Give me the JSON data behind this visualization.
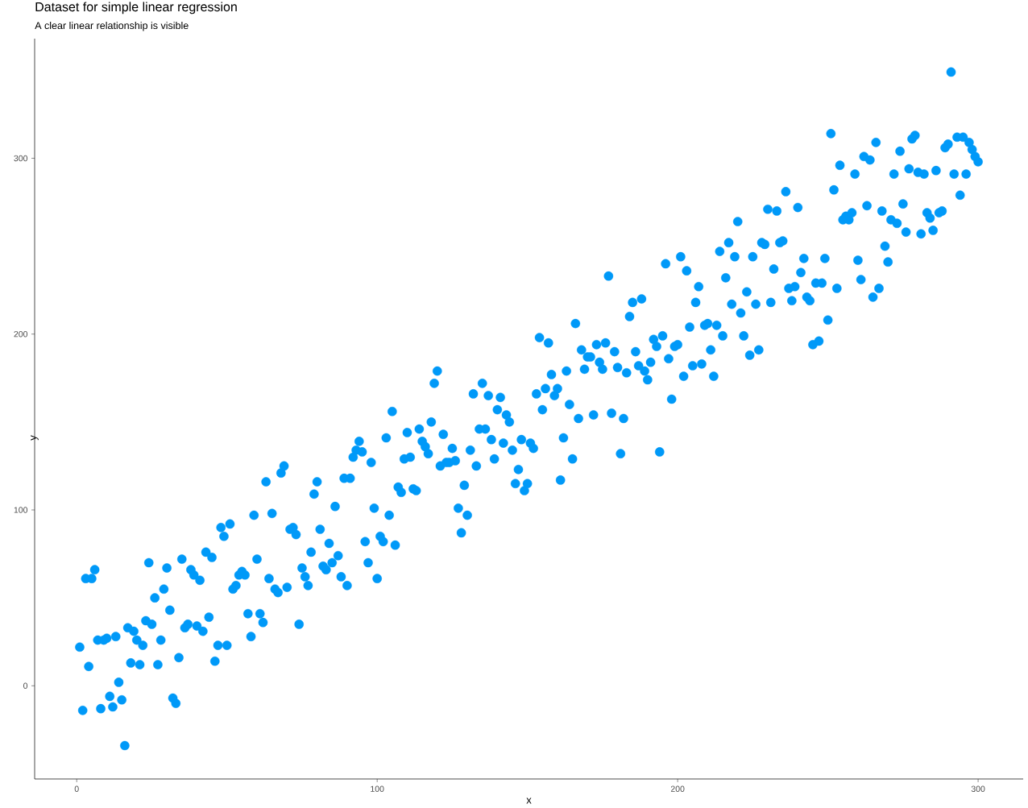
{
  "chart_data": {
    "type": "scatter",
    "title": "Dataset for simple linear regression",
    "subtitle": "A clear linear relationship is visible",
    "xlabel": "x",
    "ylabel": "y",
    "x": [
      1,
      2,
      3,
      4,
      5,
      6,
      7,
      8,
      9,
      10,
      11,
      12,
      13,
      14,
      15,
      16,
      17,
      18,
      19,
      20,
      21,
      22,
      23,
      24,
      25,
      26,
      27,
      28,
      29,
      30,
      31,
      32,
      33,
      34,
      35,
      36,
      37,
      38,
      39,
      40,
      41,
      42,
      43,
      44,
      45,
      46,
      47,
      48,
      49,
      50,
      51,
      52,
      53,
      54,
      55,
      56,
      57,
      58,
      59,
      60,
      61,
      62,
      63,
      64,
      65,
      66,
      67,
      68,
      69,
      70,
      71,
      72,
      73,
      74,
      75,
      76,
      77,
      78,
      79,
      80,
      81,
      82,
      83,
      84,
      85,
      86,
      87,
      88,
      89,
      90,
      91,
      92,
      93,
      94,
      95,
      96,
      97,
      98,
      99,
      100,
      101,
      102,
      103,
      104,
      105,
      106,
      107,
      108,
      109,
      110,
      111,
      112,
      113,
      114,
      115,
      116,
      117,
      118,
      119,
      120,
      121,
      122,
      123,
      124,
      125,
      126,
      127,
      128,
      129,
      130,
      131,
      132,
      133,
      134,
      135,
      136,
      137,
      138,
      139,
      140,
      141,
      142,
      143,
      144,
      145,
      146,
      147,
      148,
      149,
      150,
      151,
      152,
      153,
      154,
      155,
      156,
      157,
      158,
      159,
      160,
      161,
      162,
      163,
      164,
      165,
      166,
      167,
      168,
      169,
      170,
      171,
      172,
      173,
      174,
      175,
      176,
      177,
      178,
      179,
      180,
      181,
      182,
      183,
      184,
      185,
      186,
      187,
      188,
      189,
      190,
      191,
      192,
      193,
      194,
      195,
      196,
      197,
      198,
      199,
      200,
      201,
      202,
      203,
      204,
      205,
      206,
      207,
      208,
      209,
      210,
      211,
      212,
      213,
      214,
      215,
      216,
      217,
      218,
      219,
      220,
      221,
      222,
      223,
      224,
      225,
      226,
      227,
      228,
      229,
      230,
      231,
      232,
      233,
      234,
      235,
      236,
      237,
      238,
      239,
      240,
      241,
      242,
      243,
      244,
      245,
      246,
      247,
      248,
      249,
      250,
      251,
      252,
      253,
      254,
      255,
      256,
      257,
      258,
      259,
      260,
      261,
      262,
      263,
      264,
      265,
      266,
      267,
      268,
      269,
      270,
      271,
      272,
      273,
      274,
      275,
      276,
      277,
      278,
      279,
      280,
      281,
      282,
      283,
      284,
      285,
      286,
      287,
      288,
      289,
      290,
      291,
      292,
      293,
      294,
      295,
      296,
      297,
      298,
      299,
      300
    ],
    "values": [
      22,
      -14,
      61,
      11,
      61,
      66,
      26,
      -13,
      26,
      27,
      -6,
      -12,
      28,
      2,
      -8,
      -34,
      33,
      13,
      31,
      26,
      12,
      23,
      37,
      70,
      35,
      50,
      12,
      26,
      55,
      67,
      43,
      -7,
      -10,
      16,
      72,
      33,
      35,
      66,
      63,
      34,
      60,
      31,
      76,
      39,
      73,
      14,
      23,
      90,
      85,
      23,
      92,
      55,
      57,
      63,
      65,
      63,
      41,
      28,
      97,
      72,
      41,
      36,
      116,
      61,
      98,
      55,
      53,
      121,
      125,
      56,
      89,
      90,
      86,
      35,
      67,
      62,
      57,
      76,
      109,
      116,
      89,
      68,
      66,
      81,
      70,
      102,
      74,
      62,
      118,
      57,
      118,
      130,
      134,
      139,
      133,
      82,
      70,
      127,
      101,
      61,
      85,
      82,
      141,
      97,
      156,
      80,
      113,
      110,
      129,
      144,
      130,
      112,
      111,
      146,
      139,
      136,
      132,
      150,
      172,
      179,
      125,
      143,
      127,
      127,
      135,
      128,
      101,
      87,
      114,
      97,
      134,
      166,
      125,
      146,
      172,
      146,
      165,
      140,
      129,
      157,
      164,
      138,
      154,
      150,
      134,
      115,
      123,
      140,
      111,
      115,
      138,
      135,
      166,
      198,
      157,
      169,
      195,
      177,
      165,
      169,
      117,
      141,
      179,
      160,
      129,
      206,
      152,
      191,
      180,
      187,
      187,
      154,
      194,
      184,
      180,
      195,
      233,
      155,
      190,
      181,
      132,
      152,
      178,
      210,
      218,
      190,
      182,
      220,
      179,
      174,
      184,
      197,
      193,
      133,
      199,
      240,
      186,
      163,
      193,
      194,
      244,
      176,
      236,
      204,
      182,
      218,
      227,
      183,
      205,
      206,
      191,
      176,
      205,
      247,
      199,
      232,
      252,
      217,
      244,
      264,
      212,
      199,
      224,
      188,
      244,
      217,
      191,
      252,
      251,
      271,
      218,
      237,
      270,
      252,
      253,
      281,
      226,
      219,
      227,
      272,
      235,
      243,
      221,
      219,
      194,
      229,
      196,
      229,
      243,
      208,
      314,
      282,
      226,
      296,
      265,
      267,
      265,
      269,
      291,
      242,
      231,
      301,
      273,
      299,
      221,
      309,
      226,
      270,
      250,
      241,
      265,
      291,
      263,
      304,
      274,
      258,
      294,
      311,
      313,
      292,
      257,
      291,
      269,
      266,
      259,
      293,
      269,
      270,
      306,
      308,
      349,
      291,
      312,
      279,
      312,
      291,
      309,
      305,
      301,
      298
    ],
    "color": "#0099f8",
    "marker": "circle",
    "xlim": [
      -14,
      315
    ],
    "ylim": [
      -53,
      368
    ],
    "xticks": [
      0,
      100,
      200,
      300
    ],
    "yticks": [
      0,
      100,
      200,
      300
    ]
  }
}
